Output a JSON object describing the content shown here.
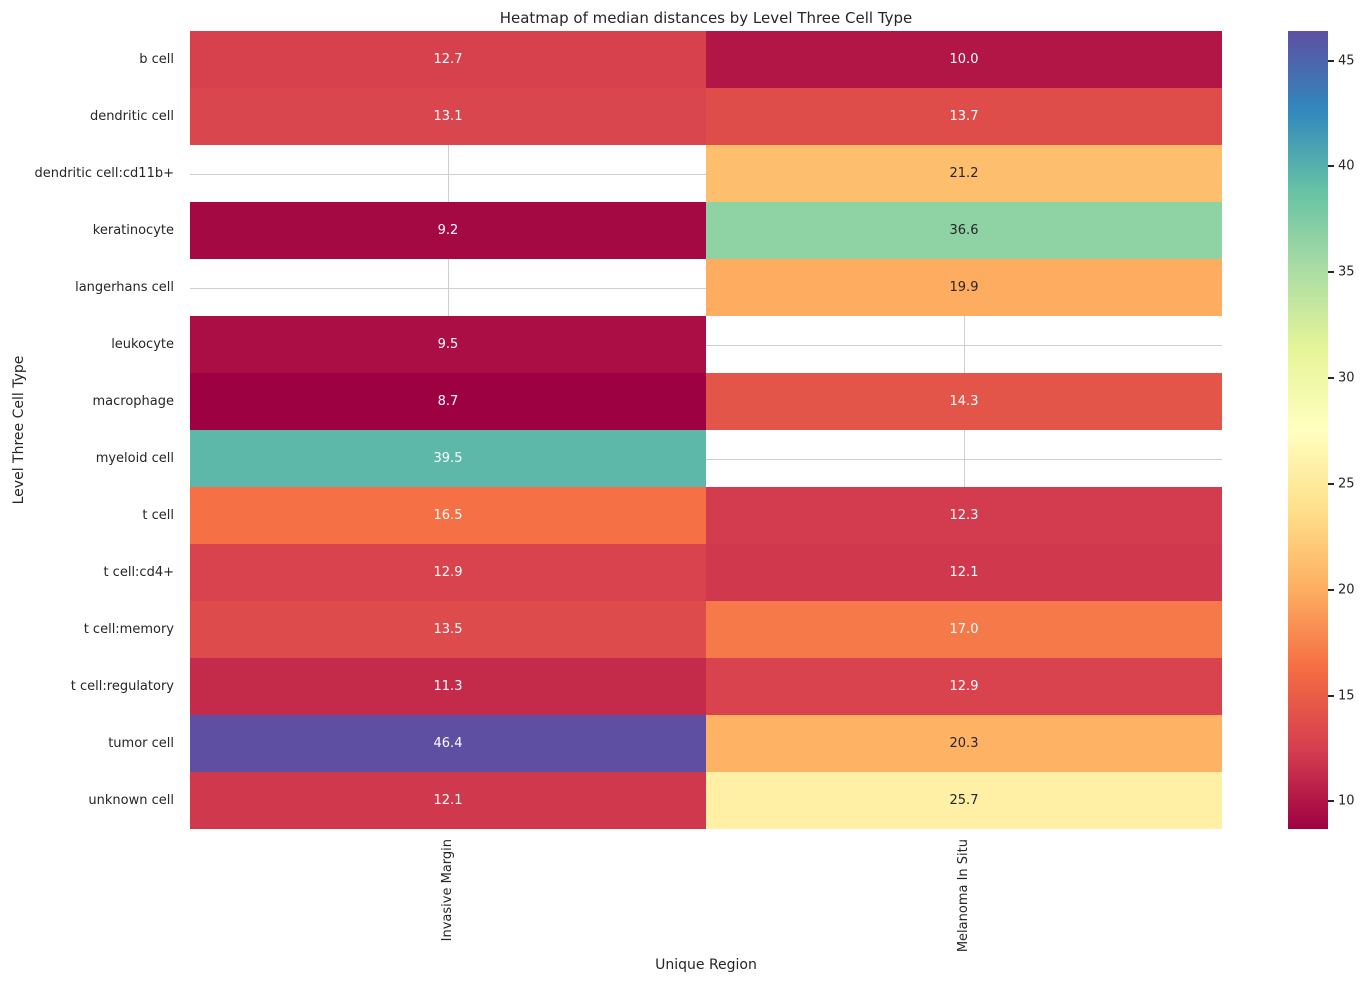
{
  "figure": {
    "background": "#ffffff",
    "text_color": "#262626",
    "grid_color": "#cfcfcf",
    "annotation_text_light": "#ffffff",
    "annotation_text_dark": "#262626",
    "luminance_threshold": 0.408
  },
  "chart_data": {
    "type": "heatmap",
    "title": "Heatmap of median distances by Level Three Cell Type",
    "xlabel": "Unique Region",
    "ylabel": "Level Three Cell Type",
    "columns": [
      "Invasive Margin",
      "Melanoma In Situ"
    ],
    "rows": [
      "b cell",
      "dendritic cell",
      "dendritic cell:cd11b+",
      "keratinocyte",
      "langerhans cell",
      "leukocyte",
      "macrophage",
      "myeloid cell",
      "t cell",
      "t cell:cd4+",
      "t cell:memory",
      "t cell:regulatory",
      "tumor cell",
      "unknown cell"
    ],
    "values": [
      [
        12.7,
        10.0
      ],
      [
        13.1,
        13.7
      ],
      [
        null,
        21.2
      ],
      [
        9.2,
        36.6
      ],
      [
        null,
        19.9
      ],
      [
        9.5,
        null
      ],
      [
        8.7,
        14.3
      ],
      [
        39.5,
        null
      ],
      [
        16.5,
        12.3
      ],
      [
        12.9,
        12.1
      ],
      [
        13.5,
        17.0
      ],
      [
        11.3,
        12.9
      ],
      [
        46.4,
        20.3
      ],
      [
        12.1,
        25.7
      ]
    ],
    "annotations": true,
    "annotation_decimals": 1,
    "colormap": "Spectral",
    "colormap_anchors": [
      "#9e0142",
      "#d53e4f",
      "#f46d43",
      "#fdae61",
      "#fee08b",
      "#ffffbf",
      "#e6f598",
      "#abdda4",
      "#66c2a5",
      "#3288bd",
      "#5e4fa2"
    ],
    "vmin": 8.7,
    "vmax": 46.4,
    "colorbar_ticks": [
      10,
      15,
      20,
      25,
      30,
      35,
      40,
      45
    ],
    "grid": true,
    "legend_position": "right-colorbar"
  }
}
